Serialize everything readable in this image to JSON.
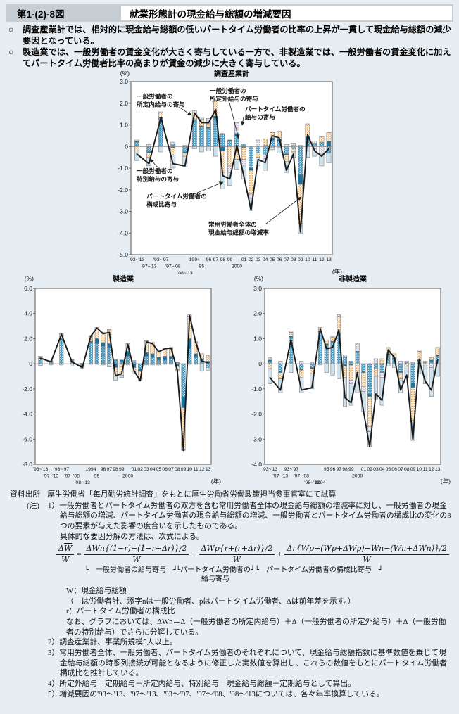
{
  "header": {
    "figure_no": "第1-(2)-8図",
    "title": "就業形態計の現金給与総額の増減要因"
  },
  "bullets": {
    "items": [
      {
        "marker": "○",
        "text": "調査産業計では、相対的に現金給与総額の低いパートタイム労働者の比率の上昇が一貫して現金給与総額の減少要因となっている。"
      },
      {
        "marker": "○",
        "text": "製造業では、一般労働者の賃金変化が大きく寄与している一方で、非製造業では、一般労働者の賃金変化に加えてパートタイム労働者比率の高まりが賃金の減少に大きく寄与している。"
      }
    ]
  },
  "chart_data": [
    {
      "type": "bar",
      "subtype": "stacked-bar-with-line",
      "title": "調査産業計",
      "unit": "(%)",
      "year_label": "(年)",
      "ylim": [
        -5,
        3
      ],
      "ytick_vals": [
        3,
        2,
        1,
        0,
        -1,
        -2,
        -3,
        -4,
        -5
      ],
      "ytick_labels": [
        "3.0",
        "2.0",
        "1.0",
        "0",
        "-1.0",
        "-2.0",
        "-3.0",
        "-4.0",
        "-5.0"
      ],
      "categories": [
        "'93~'13",
        "'97~'13",
        "'93~'97",
        "'97~'08",
        "'08~'13",
        "1994",
        "95",
        "96",
        "97",
        "98",
        "99",
        "2000",
        "01",
        "02",
        "03",
        "04",
        "05",
        "06",
        "07",
        "08",
        "09",
        "10",
        "11",
        "12",
        "13"
      ],
      "tick_rows": [
        0,
        1,
        0,
        1,
        2,
        0,
        1,
        0,
        0,
        0,
        0,
        1,
        0,
        0,
        0,
        0,
        0,
        0,
        0,
        0,
        0,
        0,
        0,
        0,
        0
      ],
      "series": [
        {
          "key": "shoteinai",
          "name": "一般労働者の所定内給与の寄与",
          "values": [
            0.2,
            -0.25,
            1.3,
            0.1,
            -0.25,
            1.2,
            0.9,
            0.85,
            1.3,
            0.55,
            0.25,
            0.5,
            0.1,
            -1.0,
            -0.3,
            -0.4,
            0.3,
            0.25,
            -0.35,
            -0.1,
            -1.3,
            0.3,
            0.1,
            0.2,
            -0.3
          ]
        },
        {
          "key": "shoteigai",
          "name": "一般労働者の所定外給与の寄与",
          "values": [
            0.05,
            -0.05,
            0.05,
            -0.05,
            -0.05,
            0.05,
            0.05,
            0.05,
            0.1,
            -0.2,
            0.05,
            0.1,
            -0.05,
            -0.1,
            0.0,
            0.05,
            0.1,
            0.1,
            -0.05,
            0.05,
            -0.45,
            0.15,
            0.05,
            0.0,
            0.25
          ]
        },
        {
          "key": "tokubetsu",
          "name": "一般労働者の特別給与の寄与",
          "values": [
            -0.2,
            -0.2,
            0.2,
            -0.35,
            -0.15,
            0.3,
            0.3,
            0.15,
            0.75,
            -1.0,
            -0.9,
            -0.6,
            -0.55,
            -1.1,
            -0.2,
            0.3,
            0.25,
            0.35,
            -0.3,
            -0.15,
            -1.8,
            0.55,
            0.1,
            0.25,
            0.4
          ]
        },
        {
          "key": "part_kyuyo",
          "name": "パートタイム労働者の給与の寄与",
          "values": [
            0.05,
            0.1,
            0.05,
            0.1,
            0.05,
            0.1,
            0.1,
            0.25,
            0.0,
            0.05,
            -0.3,
            0.5,
            -0.3,
            -0.2,
            0.3,
            -0.15,
            -0.05,
            -0.05,
            0.1,
            0.1,
            0.05,
            0.05,
            -0.1,
            -0.35,
            0.0
          ]
        },
        {
          "key": "koseihi",
          "name": "パートタイム労働者の構成比寄与",
          "values": [
            -0.45,
            -0.4,
            -0.25,
            -0.6,
            -0.5,
            -0.1,
            -0.25,
            -0.2,
            -0.45,
            -0.75,
            -0.6,
            -0.45,
            -0.6,
            -0.55,
            -0.4,
            -0.55,
            -0.1,
            -0.25,
            -0.5,
            -0.25,
            -0.45,
            -0.5,
            -0.35,
            -0.55,
            -0.45
          ]
        }
      ],
      "line": {
        "name": "常用労働者全体の現金給与総額の増減率",
        "values": [
          -0.35,
          -0.8,
          1.35,
          -0.8,
          -0.9,
          1.55,
          1.1,
          1.1,
          1.7,
          -1.35,
          -1.5,
          0.05,
          -1.4,
          -2.95,
          -0.6,
          -0.75,
          0.5,
          0.4,
          -1.1,
          -0.35,
          -3.95,
          0.55,
          -0.2,
          -0.45,
          -0.1
        ]
      },
      "annotations": [
        {
          "lines": [
            "一般労働者の",
            "所定内給与の寄与"
          ]
        },
        {
          "lines": [
            "一般労働者の",
            "所定外給与の寄与"
          ]
        },
        {
          "lines": [
            "パートタイム労働者の",
            "給与の寄与"
          ]
        },
        {
          "lines": [
            "一般労働者の",
            "特別給与の寄与"
          ]
        },
        {
          "lines": [
            "パートタイム労働者の",
            "構成比寄与"
          ]
        },
        {
          "lines": [
            "常用労働者全体の",
            "現金給与総額の増減率"
          ]
        }
      ]
    },
    {
      "type": "bar",
      "subtype": "stacked-bar-with-line",
      "title": "製造業",
      "unit": "(%)",
      "year_label": "(年)",
      "ylim": [
        -8,
        6
      ],
      "ytick_vals": [
        6,
        4,
        2,
        0,
        -2,
        -4,
        -6,
        -8
      ],
      "ytick_labels": [
        "6.0",
        "4.0",
        "2.0",
        "0",
        "-2.0",
        "-4.0",
        "-6.0",
        "-8.0"
      ],
      "categories": [
        "'93~'13",
        "'97~'13",
        "'93~'97",
        "'97~'08",
        "'08~'13",
        "1994",
        "95",
        "96",
        "97",
        "98",
        "99",
        "2000",
        "01",
        "02",
        "03",
        "04",
        "05",
        "06",
        "07",
        "08",
        "09",
        "10",
        "11",
        "12",
        "13"
      ],
      "tick_rows": [
        0,
        1,
        0,
        1,
        2,
        0,
        1,
        0,
        0,
        0,
        0,
        1,
        0,
        0,
        0,
        0,
        0,
        0,
        0,
        0,
        0,
        0,
        0,
        0,
        0
      ],
      "series": [
        {
          "key": "shoteinai",
          "name": "一般労働者の所定内給与の寄与",
          "values": [
            0.4,
            0.15,
            1.9,
            0.2,
            -0.1,
            1.7,
            1.6,
            1.4,
            1.3,
            0.3,
            0.2,
            0.6,
            0.2,
            -0.4,
            0.6,
            0.5,
            0.3,
            0.3,
            0.4,
            0.1,
            -2.6,
            1.2,
            0.5,
            0.3,
            -0.3
          ]
        },
        {
          "key": "shoteigai",
          "name": "一般労働者の所定外給与の寄与",
          "values": [
            0.05,
            0.0,
            0.1,
            0.05,
            -0.05,
            0.1,
            0.4,
            0.3,
            0.3,
            -0.3,
            0.1,
            0.4,
            -0.3,
            -0.2,
            0.3,
            0.3,
            0.2,
            0.3,
            0.2,
            -0.2,
            -0.9,
            0.8,
            0.3,
            0.1,
            0.2
          ]
        },
        {
          "key": "tokubetsu",
          "name": "一般労働者の特別給与の寄与",
          "values": [
            0.1,
            0.05,
            0.4,
            0.05,
            -0.1,
            0.4,
            0.8,
            0.7,
            1.1,
            -0.7,
            -0.8,
            0.6,
            -0.3,
            -0.6,
            0.9,
            0.9,
            0.55,
            0.65,
            0.7,
            -0.3,
            -3.1,
            1.8,
            0.9,
            0.4,
            0.45
          ]
        },
        {
          "key": "part_kyuyo",
          "name": "パートタイム労働者の給与の寄与",
          "values": [
            0.05,
            0.05,
            0.05,
            0.05,
            0.05,
            0.05,
            0.1,
            0.1,
            0.05,
            0.05,
            -0.1,
            0.05,
            0.05,
            0.0,
            0.05,
            0.0,
            0.0,
            0.0,
            0.0,
            0.0,
            -0.2,
            0.1,
            0.05,
            0.0,
            0.0
          ]
        },
        {
          "key": "koseihi",
          "name": "パートタイム労働者の構成比寄与",
          "values": [
            -0.15,
            -0.1,
            -0.1,
            -0.2,
            -0.1,
            -0.05,
            -0.05,
            -0.1,
            -0.25,
            -0.3,
            -0.2,
            -0.1,
            -0.2,
            -0.15,
            -0.1,
            -0.1,
            -0.1,
            -0.05,
            -0.05,
            -0.1,
            -0.1,
            -0.05,
            -0.05,
            -0.6,
            -0.25
          ]
        }
      ],
      "line": {
        "name": "常用労働者全体の現金給与総額の増減率",
        "values": [
          0.45,
          0.15,
          2.35,
          0.15,
          -0.3,
          2.2,
          2.85,
          2.4,
          2.5,
          -0.95,
          -0.8,
          1.55,
          -0.55,
          -1.35,
          1.75,
          1.6,
          0.95,
          1.2,
          1.25,
          -0.5,
          -6.9,
          3.85,
          1.7,
          0.2,
          0.1
        ]
      }
    },
    {
      "type": "bar",
      "subtype": "stacked-bar-with-line",
      "title": "非製造業",
      "unit": "(%)",
      "year_label": "(年)",
      "ylim": [
        -4,
        3
      ],
      "ytick_vals": [
        3,
        2,
        1,
        0,
        -1,
        -2,
        -3,
        -4
      ],
      "ytick_labels": [
        "3.0",
        "2.0",
        "1.0",
        "0",
        "-1.0",
        "-2.0",
        "-3.0",
        "-4.0"
      ],
      "categories": [
        "'93~'13",
        "'97~'13",
        "'93~'97",
        "'97~'08",
        "'08~'13",
        "1994",
        "95",
        "96",
        "97",
        "98",
        "99",
        "2000",
        "01",
        "02",
        "03",
        "04",
        "05",
        "06",
        "07",
        "08",
        "09",
        "10",
        "11",
        "12",
        "13"
      ],
      "tick_rows": [
        0,
        1,
        0,
        1,
        2,
        2,
        0,
        0,
        0,
        0,
        0,
        1,
        0,
        0,
        0,
        0,
        0,
        0,
        0,
        0,
        0,
        0,
        0,
        0,
        0
      ],
      "series": [
        {
          "key": "shoteinai",
          "name": "一般労働者の所定内給与の寄与",
          "values": [
            0.1,
            -0.3,
            1.05,
            -0.2,
            -0.15,
            1.25,
            0.75,
            0.85,
            1.1,
            0.25,
            0.1,
            0.45,
            -0.3,
            -1.2,
            -0.2,
            -0.35,
            0.35,
            0.2,
            -0.3,
            0.05,
            -0.75,
            0.1,
            0.05,
            0.1,
            0.3
          ]
        },
        {
          "key": "shoteigai",
          "name": "一般労働者の所定外給与の寄与",
          "values": [
            0.05,
            -0.05,
            0.05,
            -0.05,
            -0.05,
            0.05,
            0.05,
            0.05,
            0.1,
            -0.1,
            -0.05,
            0.05,
            -0.05,
            -0.1,
            0.0,
            0.0,
            0.05,
            0.05,
            -0.05,
            0.0,
            -0.2,
            0.05,
            0.0,
            0.05,
            0.05
          ]
        },
        {
          "key": "tokubetsu",
          "name": "一般労働者の特別給与の寄与",
          "values": [
            -0.2,
            -0.25,
            0.15,
            -0.3,
            -0.2,
            0.15,
            0.15,
            0.15,
            0.7,
            -0.45,
            -0.6,
            -0.35,
            -0.55,
            -1.2,
            -0.3,
            0.2,
            0.25,
            0.15,
            -0.25,
            -0.1,
            -1.3,
            0.35,
            0.05,
            0.1,
            0.3
          ]
        },
        {
          "key": "part_kyuyo",
          "name": "パートタイム労働者の給与の寄与",
          "values": [
            0.1,
            0.1,
            0.05,
            0.1,
            0.05,
            0.0,
            0.0,
            0.05,
            0.05,
            0.1,
            -0.15,
            0.3,
            -0.2,
            -0.2,
            0.2,
            -0.2,
            0.0,
            0.0,
            0.1,
            0.05,
            0.05,
            0.05,
            -0.1,
            -0.15,
            0.0
          ]
        },
        {
          "key": "koseihi",
          "name": "パートタイム労働者の構成比寄与",
          "values": [
            -0.6,
            -0.55,
            -0.35,
            -0.6,
            -0.6,
            -0.05,
            -0.35,
            -0.45,
            -0.6,
            -1.15,
            -0.85,
            -0.8,
            -0.8,
            -0.6,
            -0.9,
            -1.1,
            -0.1,
            -0.15,
            -0.55,
            -0.45,
            -0.8,
            -0.4,
            -0.7,
            -1.15,
            -0.5
          ]
        }
      ],
      "line": {
        "name": "常用労働者全体の現金給与総額の増減率",
        "values": [
          -0.55,
          -1.05,
          0.95,
          -1.05,
          -0.95,
          1.4,
          0.6,
          0.65,
          1.35,
          -1.35,
          -1.55,
          -0.35,
          -1.9,
          -3.3,
          -1.2,
          -1.45,
          0.55,
          0.25,
          -1.05,
          -0.45,
          -3.0,
          0.15,
          -0.7,
          -1.05,
          0.15
        ]
      }
    }
  ],
  "formula": {
    "lhs_delta": "Δ",
    "lhs_w": "W",
    "den": "W",
    "eq": "=",
    "plus": "+",
    "t1_num": "ΔWn{(1−r)+(1−r−Δr)}/2",
    "t2_num": "ΔWp{r+(r+Δr)}/2",
    "t3_num": "Δr{Wp+(Wp+ΔWp)−Wn−(Wn+ΔWn)}/2",
    "brace1": "└　一般労働者の給与寄与　┘",
    "brace2": "└パートタイム労働者の┘",
    "brace2b": "給与寄与",
    "brace3": "└　パートタイム労働者の構成比寄与　┘"
  },
  "notes": {
    "source_label": "資料出所",
    "source_text": "厚生労働省「毎月勤労統計調査」をもとに厚生労働省労働政策担当参事官室にて試算",
    "chu_label": "(注)",
    "n1a": "1）一般労働者とパートタイム労働者の双方を含む常用労働者全体の現金給与総額の増減率に対し、一般労働者の現金給与総額の増減、パートタイム労働者の現金給与総額の増減、一般労働者とパートタイム労働者の構成比の変化の3つの要素が与えた影響の度合いを示したものである。",
    "n1b": "具体的な要因分解の方法は、次式による。",
    "w_line": "W：現金給与総額",
    "w_note": "（￣は労働者計、添字nは一般労働者、pはパートタイム労働者、Δは前年差を示す。）",
    "r_line": "r：パートタイム労働者の構成比",
    "nao_line": "なお、グラフにおいては、ΔWn＝Δ（一般労働者の所定内給与）＋Δ（一般労働者の所定外給与）＋Δ（一般労働者の特別給与）でさらに分解している。",
    "n2": "2）調査産業計、事業所規模5人以上。",
    "n3": "3）常用労働者全体、一般労働者、パートタイム労働者のそれぞれについて、現金給与総額指数に基準数値を乗じて現金給与総額の時系列接続が可能となるように修正した実数値を算出し、これらの数値をもとにパートタイム労働者構成比を推計している。",
    "n4": "4）所定外給与＝定期給与－所定内給与、特別給与＝現金給与総額－定期給与として算出。",
    "n5": "5）増減要因の'93～'13、'97～'13、'93～'97、'97～'08、'08～'13については、各々年率換算している。"
  },
  "colors": {
    "page_bg": "#e7eef3",
    "header_band": "#c7ced3",
    "plot_bg": "#ffffff",
    "bar_shoteinai": "#2d8bb8",
    "bar_shoteigai": "#15739e",
    "bar_tokubetsu_dots": "#e49a31",
    "bar_part_kyuyo_dots": "#b69fc9",
    "bar_koseihi": "#cfe3ef",
    "total_line": "#1a1a1a"
  }
}
